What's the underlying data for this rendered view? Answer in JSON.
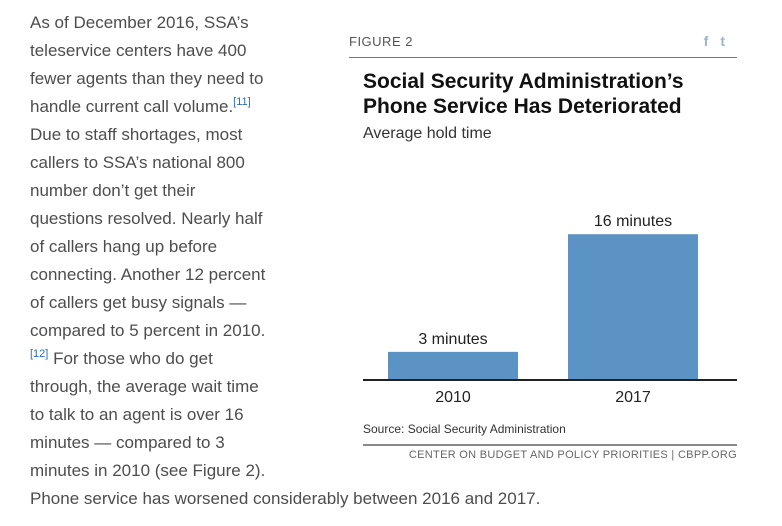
{
  "article": {
    "lines": [
      "As of December 2016, SSA’s",
      "teleservice centers have 400",
      "fewer agents than they need to",
      "handle current call volume.",
      "Due to staff shortages, most",
      "callers to SSA’s national 800",
      "number don’t get their",
      "questions resolved. Nearly half",
      "of callers hang up before",
      "connecting. Another 12 percent",
      "of callers get busy signals —",
      "compared to 5 percent in 2010.",
      " For those who do get",
      "through, the average wait time",
      "to talk to an agent is over 16",
      "minutes — compared to 3",
      "minutes in 2010 (see Figure 2)."
    ],
    "footnote_11": "[11]",
    "footnote_12": "[12]",
    "closing": "Phone service has worsened considerably between 2016 and 2017."
  },
  "figure": {
    "label": "FIGURE 2",
    "share_facebook": "f",
    "share_twitter": "t",
    "source": "Source: Social Security Administration",
    "org": "CENTER ON BUDGET AND POLICY PRIORITIES | CBPP.ORG"
  },
  "chart_data": {
    "type": "bar",
    "title": "Social Security Administration’s Phone Service Has Deteriorated",
    "subtitle": "Average hold time",
    "categories": [
      "2010",
      "2017"
    ],
    "values": [
      3,
      16
    ],
    "data_labels": [
      "3 minutes",
      "16 minutes"
    ],
    "ylim": [
      0,
      20
    ],
    "xlabel": "",
    "ylabel": "",
    "grid": false,
    "bar_color": "#5b93c5"
  }
}
